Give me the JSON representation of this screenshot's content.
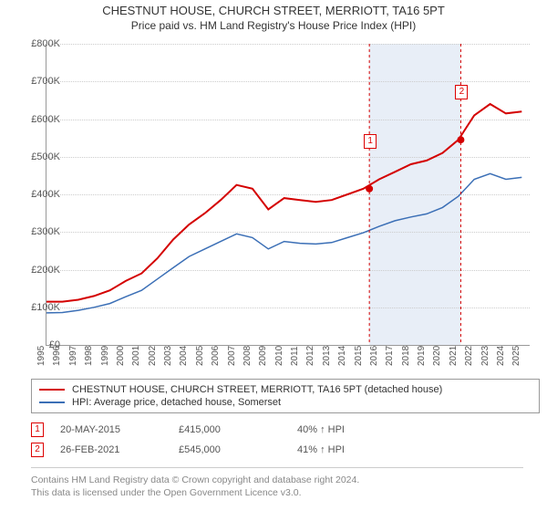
{
  "title": "CHESTNUT HOUSE, CHURCH STREET, MERRIOTT, TA16 5PT",
  "subtitle": "Price paid vs. HM Land Registry's House Price Index (HPI)",
  "chart": {
    "type": "line",
    "xlim": [
      1995,
      2025.5
    ],
    "ylim": [
      0,
      800000
    ],
    "ytick_step": 100000,
    "ytick_labels": [
      "£0",
      "£100K",
      "£200K",
      "£300K",
      "£400K",
      "£500K",
      "£600K",
      "£700K",
      "£800K"
    ],
    "xtick_years": [
      1995,
      1996,
      1997,
      1998,
      1999,
      2000,
      2001,
      2002,
      2003,
      2004,
      2005,
      2006,
      2007,
      2008,
      2009,
      2010,
      2011,
      2012,
      2013,
      2014,
      2015,
      2016,
      2017,
      2018,
      2019,
      2020,
      2021,
      2022,
      2023,
      2024,
      2025
    ],
    "background_color": "#ffffff",
    "grid_color": "#cccccc",
    "shaded_band": {
      "from": 2015.38,
      "to": 2021.15,
      "color": "#e8eef7"
    },
    "series": [
      {
        "key": "property",
        "label": "CHESTNUT HOUSE, CHURCH STREET, MERRIOTT, TA16 5PT (detached house)",
        "color": "#d40000",
        "line_width": 2,
        "data": [
          [
            1995,
            115000
          ],
          [
            1996,
            115000
          ],
          [
            1997,
            120000
          ],
          [
            1998,
            130000
          ],
          [
            1999,
            145000
          ],
          [
            2000,
            170000
          ],
          [
            2001,
            190000
          ],
          [
            2002,
            230000
          ],
          [
            2003,
            280000
          ],
          [
            2004,
            320000
          ],
          [
            2005,
            350000
          ],
          [
            2006,
            385000
          ],
          [
            2007,
            425000
          ],
          [
            2008,
            415000
          ],
          [
            2009,
            360000
          ],
          [
            2010,
            390000
          ],
          [
            2011,
            385000
          ],
          [
            2012,
            380000
          ],
          [
            2013,
            385000
          ],
          [
            2014,
            400000
          ],
          [
            2015,
            415000
          ],
          [
            2016,
            440000
          ],
          [
            2017,
            460000
          ],
          [
            2018,
            480000
          ],
          [
            2019,
            490000
          ],
          [
            2020,
            510000
          ],
          [
            2021,
            545000
          ],
          [
            2022,
            610000
          ],
          [
            2023,
            640000
          ],
          [
            2024,
            615000
          ],
          [
            2025,
            620000
          ]
        ]
      },
      {
        "key": "hpi",
        "label": "HPI: Average price, detached house, Somerset",
        "color": "#3b6fb6",
        "line_width": 1.5,
        "data": [
          [
            1995,
            85000
          ],
          [
            1996,
            86000
          ],
          [
            1997,
            92000
          ],
          [
            1998,
            100000
          ],
          [
            1999,
            110000
          ],
          [
            2000,
            128000
          ],
          [
            2001,
            145000
          ],
          [
            2002,
            175000
          ],
          [
            2003,
            205000
          ],
          [
            2004,
            235000
          ],
          [
            2005,
            255000
          ],
          [
            2006,
            275000
          ],
          [
            2007,
            295000
          ],
          [
            2008,
            285000
          ],
          [
            2009,
            255000
          ],
          [
            2010,
            275000
          ],
          [
            2011,
            270000
          ],
          [
            2012,
            268000
          ],
          [
            2013,
            272000
          ],
          [
            2014,
            285000
          ],
          [
            2015,
            298000
          ],
          [
            2016,
            315000
          ],
          [
            2017,
            330000
          ],
          [
            2018,
            340000
          ],
          [
            2019,
            348000
          ],
          [
            2020,
            365000
          ],
          [
            2021,
            395000
          ],
          [
            2022,
            440000
          ],
          [
            2023,
            455000
          ],
          [
            2024,
            440000
          ],
          [
            2025,
            445000
          ]
        ]
      }
    ],
    "markers": [
      {
        "idx": "1",
        "x": 2015.38,
        "y": 415000,
        "color": "#d40000"
      },
      {
        "idx": "2",
        "x": 2021.15,
        "y": 545000,
        "color": "#d40000"
      }
    ],
    "marker_box_offset_y": -60
  },
  "points_table": [
    {
      "idx": "1",
      "date": "20-MAY-2015",
      "price": "£415,000",
      "delta": "40% ↑ HPI"
    },
    {
      "idx": "2",
      "date": "26-FEB-2021",
      "price": "£545,000",
      "delta": "41% ↑ HPI"
    }
  ],
  "credits": {
    "line1": "Contains HM Land Registry data © Crown copyright and database right 2024.",
    "line2": "This data is licensed under the Open Government Licence v3.0."
  }
}
